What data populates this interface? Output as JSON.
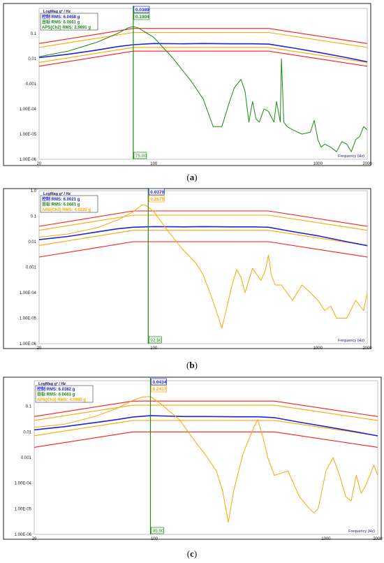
{
  "colors": {
    "red": "#ff1a1a",
    "orange": "#ffa500",
    "blue": "#1f24d6",
    "green": "#1b8a12",
    "frame": "#222222",
    "gridline": "#d8d8d8"
  },
  "chart_data": [
    {
      "type": "line",
      "caption_letter": "a",
      "y_title": "LogMag g² / Hz",
      "x_title": "Frequency (Hz)",
      "xlim": [
        20,
        2000
      ],
      "ylim": [
        1e-06,
        1.0
      ],
      "x_scale": "log",
      "y_scale": "log",
      "y_tick_labels": [
        {
          "v": 0.1,
          "t": "0.1"
        },
        {
          "v": 0.01,
          "t": "0.01"
        },
        {
          "v": 0.001,
          "t": "0.001"
        },
        {
          "v": 0.0001,
          "t": "1.00E-04"
        },
        {
          "v": 1e-05,
          "t": "1.00E-05"
        },
        {
          "v": 1e-06,
          "t": "1.00E-06"
        }
      ],
      "x_tick_labels": [
        {
          "v": 20,
          "t": "20"
        },
        {
          "v": 100,
          "t": "100"
        },
        {
          "v": 1000,
          "t": "1000"
        },
        {
          "v": 2000,
          "t": "2000"
        }
      ],
      "legend": [
        {
          "text": "控制 RMS: 6.0458 g",
          "color": "#1f24d6"
        },
        {
          "text": "目标 RMS: 6.0661 g",
          "color": "#1b8a12"
        },
        {
          "text": "APS(Ch2) RMS: 2.9891 g",
          "color": "#1b8a12"
        }
      ],
      "cursor": {
        "x": 75.0,
        "label": "75.00",
        "readouts": [
          {
            "text": "0.0389",
            "color": "#1f24d6"
          },
          {
            "text": "0.1904",
            "color": "#1b8a12"
          }
        ]
      },
      "series": [
        {
          "name": "",
          "color": "#ff1a1a",
          "x": [
            20,
            75,
            500,
            2000
          ],
          "y": [
            0.04,
            0.16,
            0.16,
            0.04
          ]
        },
        {
          "name": "",
          "color": "#ffa500",
          "x": [
            20,
            75,
            500,
            2000
          ],
          "y": [
            0.028,
            0.11,
            0.11,
            0.028
          ]
        },
        {
          "name": "",
          "color": "#ffa500",
          "x": [
            20,
            75,
            500,
            2000
          ],
          "y": [
            0.0071,
            0.028,
            0.028,
            0.0071
          ]
        },
        {
          "name": "",
          "color": "#ff1a1a",
          "x": [
            20,
            75,
            500,
            2000
          ],
          "y": [
            0.005,
            0.02,
            0.02,
            0.005
          ]
        },
        {
          "name": "控制",
          "color": "#1f24d6",
          "x": [
            20,
            30,
            45,
            60,
            75,
            100,
            150,
            200,
            300,
            400,
            500,
            700,
            1000,
            1500,
            2000
          ],
          "y": [
            0.011,
            0.015,
            0.022,
            0.03,
            0.036,
            0.04,
            0.039,
            0.04,
            0.039,
            0.039,
            0.038,
            0.027,
            0.018,
            0.011,
            0.0075
          ]
        },
        {
          "name": "APS(Ch2)",
          "color": "#1b8a12",
          "x": [
            20,
            30,
            45,
            60,
            70,
            75,
            80,
            100,
            130,
            170,
            200,
            230,
            260,
            290,
            310,
            340,
            360,
            380,
            400,
            420,
            440,
            470,
            500,
            540,
            560,
            590,
            600,
            620,
            650,
            700,
            800,
            900,
            950,
            1000,
            1050,
            1100,
            1200,
            1300,
            1400,
            1500,
            1600,
            1700,
            1800,
            1900,
            2000
          ],
          "y": [
            0.012,
            0.02,
            0.045,
            0.1,
            0.17,
            0.19,
            0.17,
            0.07,
            0.011,
            0.0012,
            0.00025,
            2e-05,
            2e-05,
            0.0002,
            0.0007,
            0.0015,
            0.0005,
            3e-05,
            0.0002,
            4e-05,
            3e-05,
            0.0001,
            8e-05,
            3e-05,
            0.0002,
            3e-05,
            0.01,
            3e-05,
            2e-05,
            1.5e-05,
            1e-05,
            1.2e-05,
            3.5e-05,
            6e-06,
            3e-06,
            4e-06,
            3e-06,
            2e-06,
            5e-06,
            4e-06,
            2e-06,
            6e-06,
            8e-06,
            2e-05,
            1.5e-05
          ]
        }
      ]
    },
    {
      "type": "line",
      "caption_letter": "b",
      "y_title": "LogMag g² / Hz",
      "x_title": "Frequency (Hz)",
      "xlim": [
        20,
        2000
      ],
      "ylim": [
        1e-06,
        1.0
      ],
      "x_scale": "log",
      "y_scale": "log",
      "y_tick_labels": [
        {
          "v": 1.0,
          "t": "1.0"
        },
        {
          "v": 0.1,
          "t": "0.1"
        },
        {
          "v": 0.01,
          "t": "0.01"
        },
        {
          "v": 0.001,
          "t": "0.001"
        },
        {
          "v": 0.0001,
          "t": "1.00E-04"
        },
        {
          "v": 1e-05,
          "t": "1.00E-05"
        },
        {
          "v": 1e-06,
          "t": "1.00E-06"
        }
      ],
      "x_tick_labels": [
        {
          "v": 20,
          "t": "20"
        },
        {
          "v": 100,
          "t": "100"
        },
        {
          "v": 1000,
          "t": "1000"
        },
        {
          "v": 2000,
          "t": "2000"
        }
      ],
      "legend": [
        {
          "text": "控制 RMS: 6.0021 g",
          "color": "#1f24d6"
        },
        {
          "text": "目标 RMS: 6.0661 g",
          "color": "#1b8a12"
        },
        {
          "text": "APS(Ch3) RMS: 4.0220 g",
          "color": "#ffa500"
        }
      ],
      "cursor": {
        "x": 92.5,
        "label": "92.50",
        "readouts": [
          {
            "text": "0.0370",
            "color": "#1f24d6"
          },
          {
            "text": "0.2575",
            "color": "#ffa500"
          }
        ]
      },
      "series": [
        {
          "name": "",
          "color": "#ff1a1a",
          "x": [
            20,
            75,
            500,
            2000
          ],
          "y": [
            0.04,
            0.16,
            0.16,
            0.04
          ]
        },
        {
          "name": "",
          "color": "#ffa500",
          "x": [
            20,
            75,
            500,
            2000
          ],
          "y": [
            0.028,
            0.11,
            0.11,
            0.028
          ]
        },
        {
          "name": "",
          "color": "#ffa500",
          "x": [
            20,
            75,
            500,
            2000
          ],
          "y": [
            0.0071,
            0.028,
            0.028,
            0.0071
          ]
        },
        {
          "name": "",
          "color": "#ff1a1a",
          "x": [
            20,
            75,
            500,
            2000
          ],
          "y": [
            0.0025,
            0.01,
            0.01,
            0.0025
          ]
        },
        {
          "name": "控制",
          "color": "#1f24d6",
          "x": [
            20,
            30,
            45,
            60,
            75,
            100,
            150,
            200,
            300,
            400,
            500,
            700,
            1000,
            1500,
            2000
          ],
          "y": [
            0.012,
            0.016,
            0.024,
            0.032,
            0.037,
            0.039,
            0.038,
            0.039,
            0.038,
            0.038,
            0.037,
            0.025,
            0.017,
            0.01,
            0.007
          ]
        },
        {
          "name": "APS(Ch3)",
          "color": "#ffa500",
          "x": [
            20,
            30,
            45,
            60,
            75,
            85,
            90,
            100,
            120,
            150,
            180,
            200,
            220,
            240,
            260,
            280,
            300,
            320,
            340,
            360,
            400,
            450,
            480,
            500,
            520,
            550,
            600,
            700,
            800,
            900,
            1000,
            1100,
            1200,
            1300,
            1500,
            1700,
            1900,
            2000
          ],
          "y": [
            0.015,
            0.02,
            0.035,
            0.07,
            0.15,
            0.28,
            0.26,
            0.15,
            0.03,
            0.005,
            0.0015,
            0.0005,
            0.0001,
            2e-05,
            4e-06,
            3e-05,
            0.0002,
            0.0008,
            0.0004,
            0.0001,
            0.0009,
            0.0003,
            0.0008,
            0.003,
            0.0005,
            0.0002,
            0.0002,
            5e-05,
            0.0002,
            0.0001,
            5e-05,
            2e-05,
            3e-05,
            1e-05,
            1e-05,
            5e-05,
            2e-05,
            0.0001
          ]
        }
      ]
    },
    {
      "type": "line",
      "caption_letter": "c",
      "y_title": "LogMag g² / Hz",
      "x_title": "Frequency (Hz)",
      "xlim": [
        20,
        2000
      ],
      "ylim": [
        1e-06,
        1.0
      ],
      "x_scale": "log",
      "y_scale": "log",
      "y_tick_labels": [
        {
          "v": 0.1,
          "t": "0.1"
        },
        {
          "v": 0.01,
          "t": "0.01"
        },
        {
          "v": 0.001,
          "t": "0.001"
        },
        {
          "v": 0.0001,
          "t": "1.00E-04"
        },
        {
          "v": 1e-05,
          "t": "1.00E-05"
        },
        {
          "v": 1e-06,
          "t": "1.00E-06"
        }
      ],
      "x_tick_labels": [
        {
          "v": 20,
          "t": "20"
        },
        {
          "v": 100,
          "t": "100"
        },
        {
          "v": 1000,
          "t": "1000"
        },
        {
          "v": 2000,
          "t": "2000"
        }
      ],
      "legend": [
        {
          "text": "控制 RMS: 6.0382 g",
          "color": "#1f24d6"
        },
        {
          "text": "目标 RMS: 6.0661 g",
          "color": "#1b8a12"
        },
        {
          "text": "APS(Ch3) RMS: 4.0980 g",
          "color": "#ffa500"
        }
      ],
      "cursor": {
        "x": 95.0,
        "label": "95.00",
        "readouts": [
          {
            "text": "0.0434",
            "color": "#1f24d6"
          },
          {
            "text": "0.2417",
            "color": "#ffa500"
          }
        ]
      },
      "series": [
        {
          "name": "",
          "color": "#ff1a1a",
          "x": [
            20,
            75,
            500,
            2000
          ],
          "y": [
            0.04,
            0.16,
            0.16,
            0.04
          ]
        },
        {
          "name": "",
          "color": "#ffa500",
          "x": [
            20,
            75,
            500,
            2000
          ],
          "y": [
            0.028,
            0.11,
            0.11,
            0.028
          ]
        },
        {
          "name": "",
          "color": "#ffa500",
          "x": [
            20,
            75,
            500,
            2000
          ],
          "y": [
            0.0071,
            0.028,
            0.028,
            0.0071
          ]
        },
        {
          "name": "",
          "color": "#ff1a1a",
          "x": [
            20,
            75,
            500,
            2000
          ],
          "y": [
            0.0025,
            0.01,
            0.01,
            0.0025
          ]
        },
        {
          "name": "控制",
          "color": "#1f24d6",
          "x": [
            20,
            30,
            45,
            60,
            75,
            95,
            150,
            200,
            300,
            400,
            500,
            700,
            1000,
            1500,
            2000
          ],
          "y": [
            0.012,
            0.016,
            0.023,
            0.03,
            0.038,
            0.043,
            0.04,
            0.04,
            0.039,
            0.039,
            0.036,
            0.024,
            0.016,
            0.01,
            0.007
          ]
        },
        {
          "name": "APS(Ch3)",
          "color": "#ffa500",
          "x": [
            20,
            30,
            45,
            60,
            75,
            85,
            95,
            110,
            140,
            170,
            200,
            230,
            250,
            270,
            290,
            310,
            330,
            350,
            380,
            400,
            430,
            460,
            500,
            600,
            700,
            800,
            850,
            900,
            1000,
            1100,
            1200,
            1300,
            1400,
            1500,
            1600,
            1700,
            1800,
            1900,
            2000
          ],
          "y": [
            0.015,
            0.02,
            0.04,
            0.08,
            0.17,
            0.23,
            0.24,
            0.12,
            0.03,
            0.005,
            0.0012,
            0.0003,
            5e-05,
            3e-06,
            5e-05,
            0.0003,
            0.0015,
            0.004,
            0.015,
            0.03,
            0.006,
            0.0009,
            0.0002,
            0.0003,
            3e-05,
            1e-05,
            7e-06,
            1e-05,
            0.0003,
            0.001,
            0.0002,
            3e-05,
            2e-05,
            0.0002,
            4e-05,
            8e-05,
            0.0002,
            0.0005,
            0.0002
          ]
        }
      ]
    }
  ]
}
